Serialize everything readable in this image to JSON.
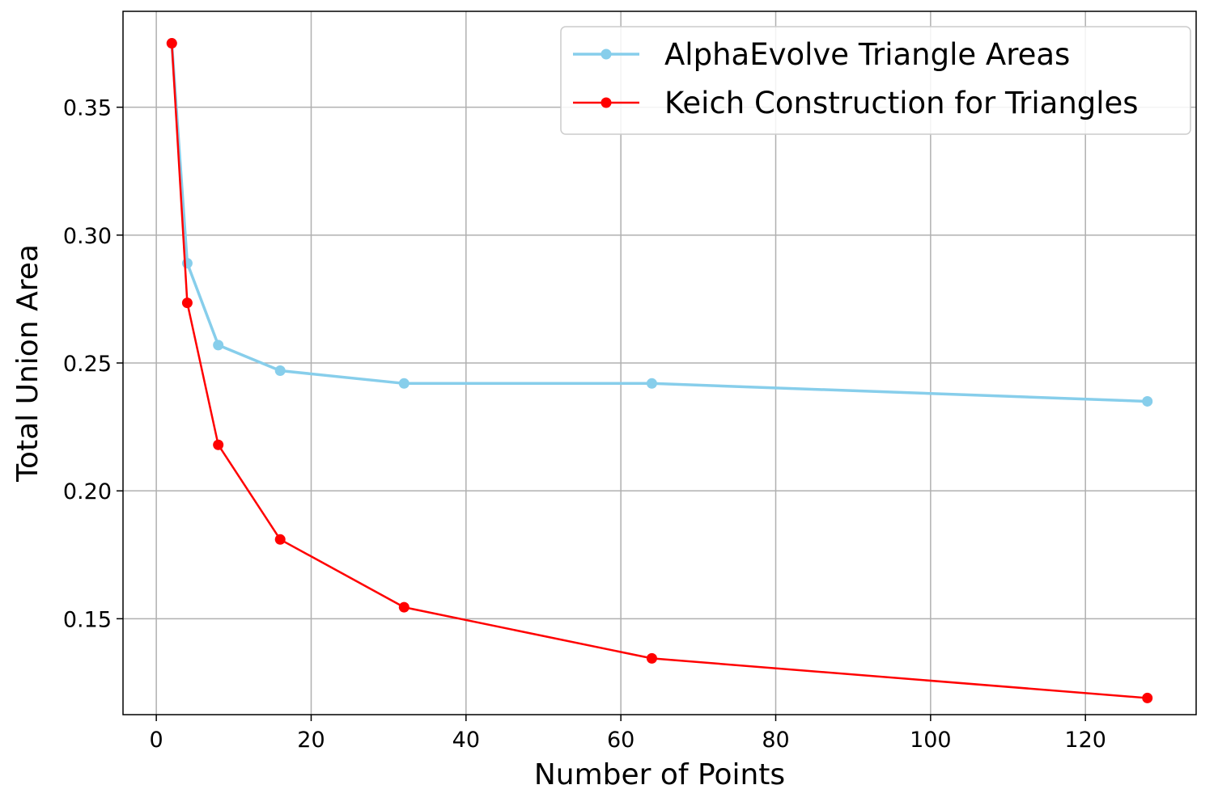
{
  "chart_data": {
    "type": "line",
    "title": "",
    "xlabel": "Number of Points",
    "ylabel": "Total Union Area",
    "xlim": [
      -4.3,
      134.3
    ],
    "ylim": [
      0.1125,
      0.3875
    ],
    "x_ticks": [
      0,
      20,
      40,
      60,
      80,
      100,
      120
    ],
    "x_tick_labels": [
      "0",
      "20",
      "40",
      "60",
      "80",
      "100",
      "120"
    ],
    "y_ticks": [
      0.15,
      0.2,
      0.25,
      0.3,
      0.35
    ],
    "y_tick_labels": [
      "0.15",
      "0.20",
      "0.25",
      "0.30",
      "0.35"
    ],
    "grid": true,
    "legend_position": "top-right",
    "series": [
      {
        "name": "AlphaEvolve Triangle Areas",
        "color": "#87ceeb",
        "marker": "circle",
        "x": [
          2,
          4,
          8,
          16,
          32,
          64,
          128
        ],
        "y": [
          0.375,
          0.289,
          0.257,
          0.247,
          0.242,
          0.242,
          0.235
        ]
      },
      {
        "name": "Keich Construction for Triangles",
        "color": "#ff0000",
        "marker": "circle",
        "x": [
          2,
          4,
          8,
          16,
          32,
          64,
          128
        ],
        "y": [
          0.375,
          0.2735,
          0.218,
          0.181,
          0.1545,
          0.1345,
          0.119
        ]
      }
    ]
  }
}
